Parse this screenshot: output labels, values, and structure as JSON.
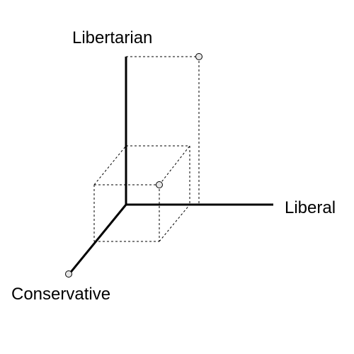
{
  "diagram": {
    "axes": {
      "vertical": "Libertarian",
      "horizontal": "Liberal",
      "depth": "Conservative"
    },
    "colors": {
      "axis": "#000000",
      "guide": "#000000",
      "point_fill": "#e6e6e6",
      "point_stroke": "#000000",
      "background": "#ffffff"
    }
  }
}
